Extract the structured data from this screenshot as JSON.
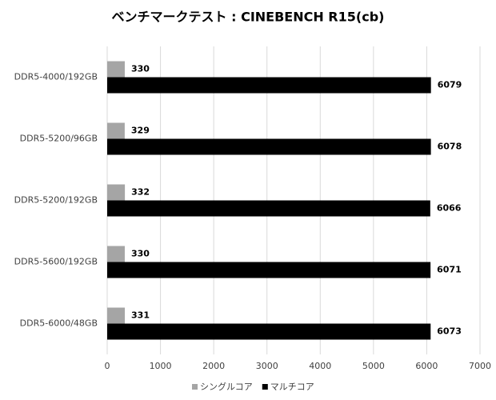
{
  "chart_data": {
    "type": "hbar",
    "title": "ベンチマークテスト : CINEBENCH R15(cb)",
    "categories": [
      "DDR5-4000/192GB",
      "DDR5-5200/96GB",
      "DDR5-5200/192GB",
      "DDR5-5600/192GB",
      "DDR5-6000/48GB"
    ],
    "series": [
      {
        "name": "シングルコア",
        "color": "#a5a5a5",
        "values": [
          330,
          329,
          332,
          330,
          331
        ]
      },
      {
        "name": "マルチコア",
        "color": "#000000",
        "values": [
          6079,
          6078,
          6066,
          6071,
          6073
        ]
      }
    ],
    "xlim": [
      0,
      7000
    ],
    "xticks": [
      0,
      1000,
      2000,
      3000,
      4000,
      5000,
      6000,
      7000
    ],
    "grid": true,
    "legend": "bottom"
  }
}
